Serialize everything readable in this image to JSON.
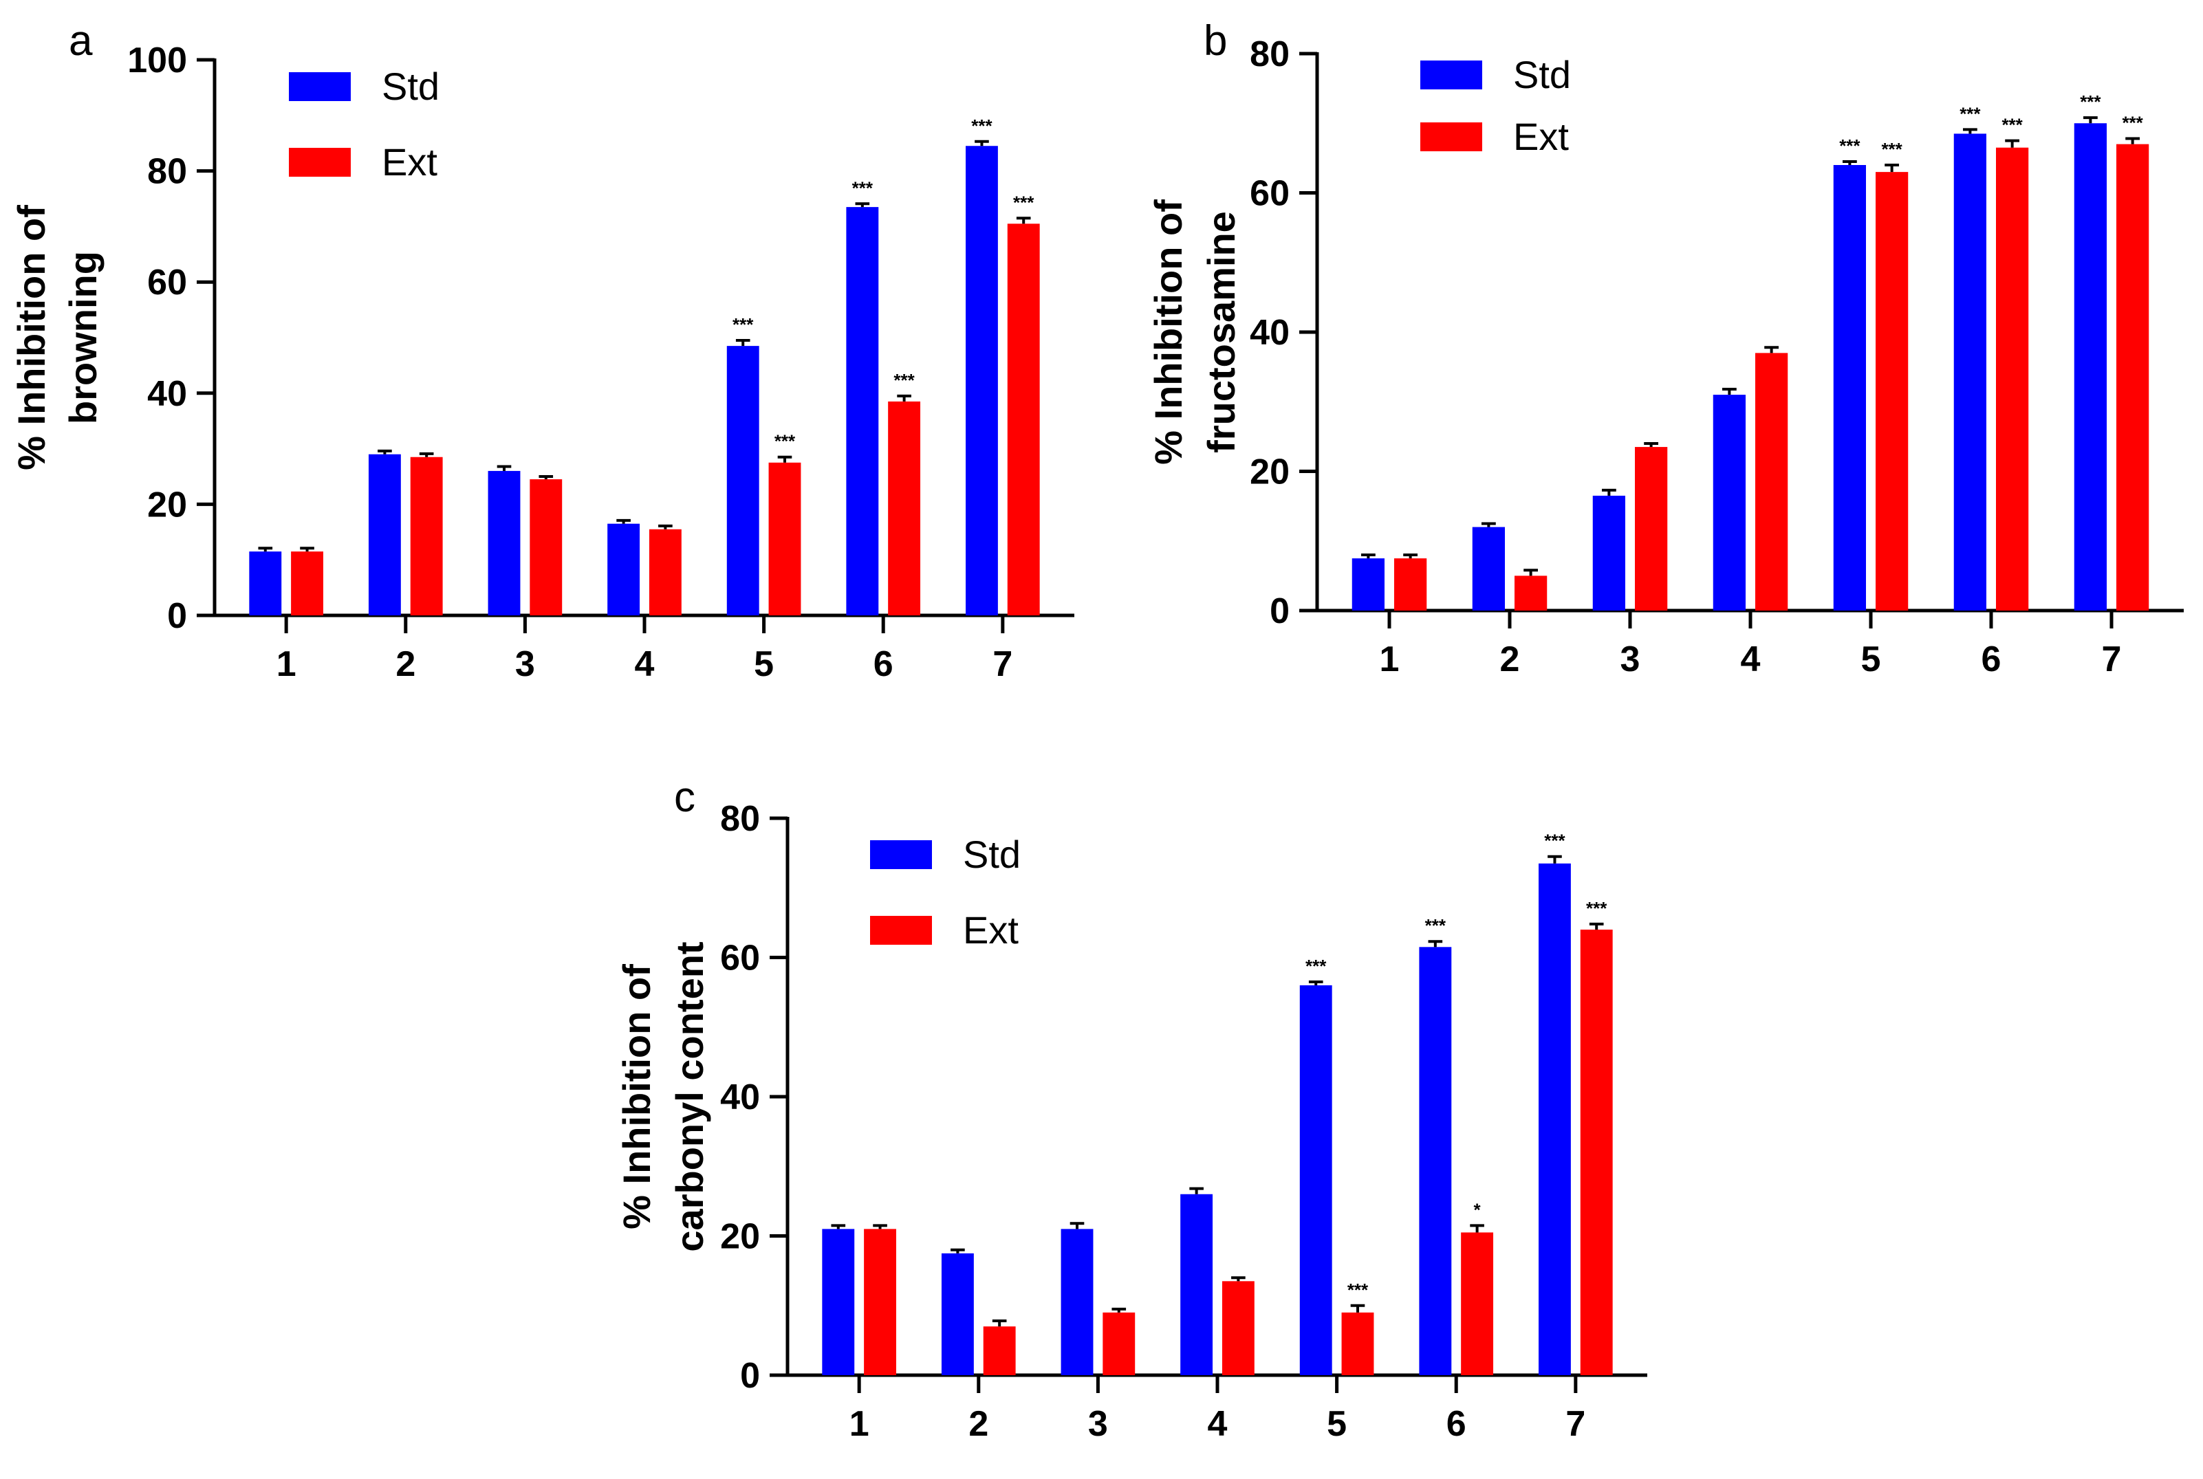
{
  "colors": {
    "std": "#0000ff",
    "ext": "#ff0000",
    "axis": "#000000"
  },
  "chart_data": [
    {
      "type": "bar",
      "panel": "a",
      "categories": [
        "1",
        "2",
        "3",
        "4",
        "5",
        "6",
        "7"
      ],
      "ylabel_lines": [
        "% Inhibition of",
        "browning"
      ],
      "ylim": [
        0,
        100
      ],
      "yticks": [
        0,
        20,
        40,
        60,
        80,
        100
      ],
      "legend_position": "top-left",
      "series": [
        {
          "name": "Std",
          "values": [
            11.5,
            29,
            26,
            16.5,
            48.5,
            73.5,
            84.5
          ],
          "errors": [
            0.6,
            0.6,
            0.8,
            0.6,
            1.0,
            0.6,
            0.8
          ],
          "sig": [
            "",
            "",
            "",
            "",
            "***",
            "***",
            "***"
          ]
        },
        {
          "name": "Ext",
          "values": [
            11.5,
            28.5,
            24.5,
            15.5,
            27.5,
            38.5,
            70.5
          ],
          "errors": [
            0.6,
            0.6,
            0.5,
            0.6,
            1.0,
            1.0,
            1.0
          ],
          "sig": [
            "",
            "",
            "",
            "",
            "***",
            "***",
            "***"
          ]
        }
      ]
    },
    {
      "type": "bar",
      "panel": "b",
      "categories": [
        "1",
        "2",
        "3",
        "4",
        "5",
        "6",
        "7"
      ],
      "ylabel_lines": [
        "% Inhibition of",
        "fructosamine"
      ],
      "ylim": [
        0,
        80
      ],
      "yticks": [
        0,
        20,
        40,
        60,
        80
      ],
      "legend_position": "top-left",
      "series": [
        {
          "name": "Std",
          "values": [
            7.5,
            12,
            16.5,
            31,
            64,
            68.5,
            70
          ],
          "errors": [
            0.5,
            0.5,
            0.8,
            0.8,
            0.5,
            0.6,
            0.8
          ],
          "sig": [
            "",
            "",
            "",
            "",
            "***",
            "***",
            "***"
          ]
        },
        {
          "name": "Ext",
          "values": [
            7.5,
            5,
            23.5,
            37,
            63,
            66.5,
            67
          ],
          "errors": [
            0.5,
            0.8,
            0.5,
            0.8,
            1.0,
            1.0,
            0.8
          ],
          "sig": [
            "",
            "",
            "",
            "",
            "***",
            "***",
            "***"
          ]
        }
      ]
    },
    {
      "type": "bar",
      "panel": "c",
      "categories": [
        "1",
        "2",
        "3",
        "4",
        "5",
        "6",
        "7"
      ],
      "ylabel_lines": [
        "% Inhibition of",
        "carbonyl content"
      ],
      "ylim": [
        0,
        80
      ],
      "yticks": [
        0,
        20,
        40,
        60,
        80
      ],
      "legend_position": "top-left",
      "series": [
        {
          "name": "Std",
          "values": [
            21,
            17.5,
            21,
            26,
            56,
            61.5,
            73.5
          ],
          "errors": [
            0.5,
            0.5,
            0.8,
            0.8,
            0.5,
            0.8,
            1.0
          ],
          "sig": [
            "",
            "",
            "",
            "",
            "***",
            "***",
            "***"
          ]
        },
        {
          "name": "Ext",
          "values": [
            21,
            7,
            9,
            13.5,
            9,
            20.5,
            64
          ],
          "errors": [
            0.5,
            0.8,
            0.5,
            0.5,
            1.0,
            1.0,
            0.8
          ],
          "sig": [
            "",
            "",
            "",
            "",
            "***",
            "*",
            "***"
          ]
        }
      ]
    }
  ]
}
